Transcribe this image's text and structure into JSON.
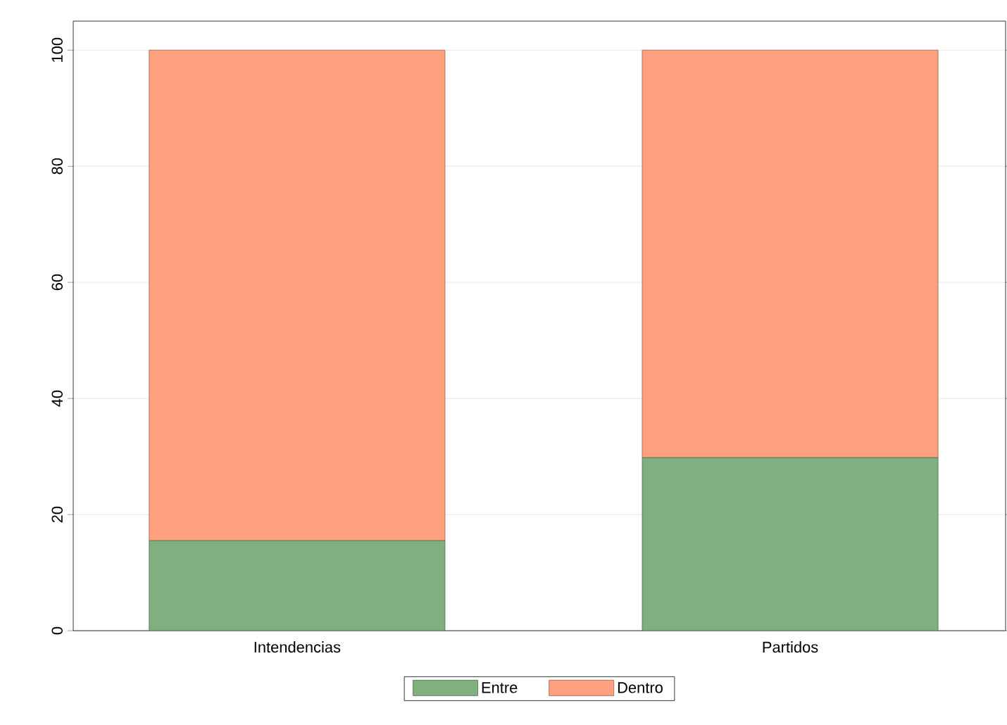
{
  "chart_data": {
    "type": "bar",
    "stacked": true,
    "categories": [
      "Intendencias",
      "Partidos"
    ],
    "series": [
      {
        "name": "Entre",
        "color": "#80b080",
        "values": [
          15.5,
          29.8
        ]
      },
      {
        "name": "Dentro",
        "color": "#ffa07e",
        "values": [
          84.5,
          70.2
        ]
      }
    ],
    "ylim": [
      0,
      105
    ],
    "yticks": [
      0,
      20,
      40,
      60,
      80,
      100
    ],
    "grid": "y",
    "legend": "bottom"
  }
}
